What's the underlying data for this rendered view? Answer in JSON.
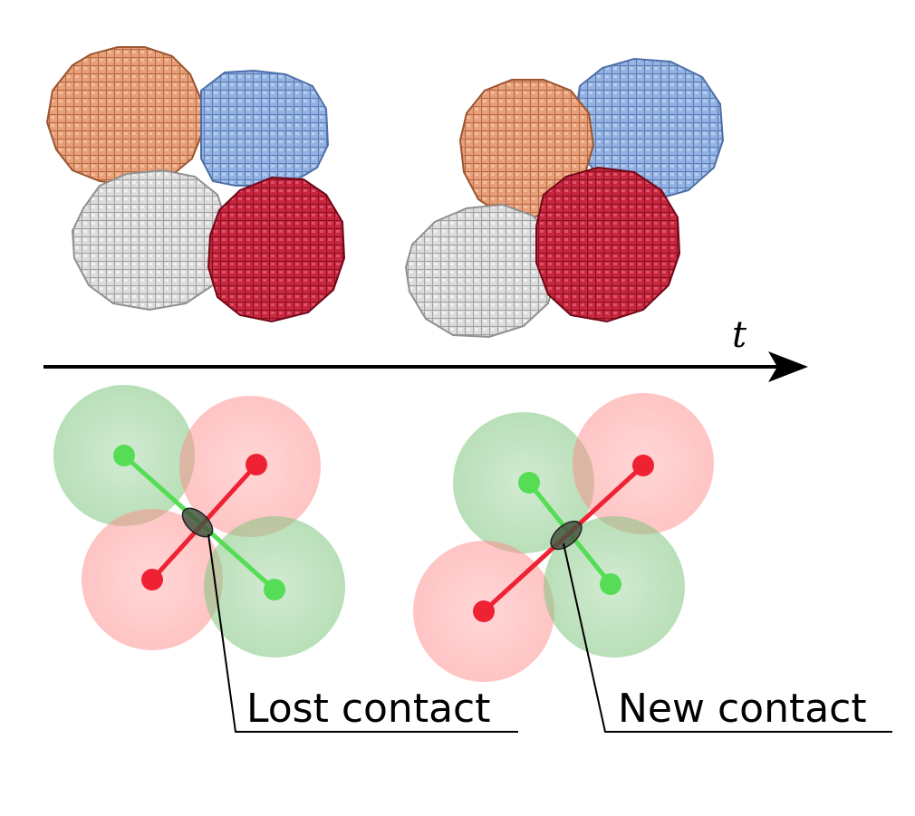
{
  "axis": {
    "label": "t"
  },
  "annotations": {
    "lost": "Lost contact",
    "new": "New contact"
  },
  "colors": {
    "orange": "#e6956a",
    "blue": "#8aa8dc",
    "white": "#d6d6d6",
    "crimson": "#c0213b",
    "sphere_green": "#8ccc8c",
    "sphere_red": "#ff8c8c",
    "bond_green": "#55dd55",
    "bond_red": "#ee2233",
    "contact": "#44553f"
  }
}
